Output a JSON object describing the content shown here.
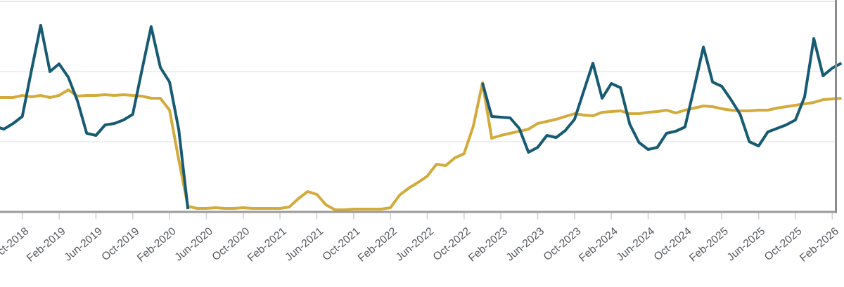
{
  "chart_data": {
    "type": "line",
    "title": "",
    "xlabel": "",
    "ylabel": "",
    "y_axis_labels_visible": false,
    "grid": "horizontal",
    "legend": "none",
    "ylim": [
      0,
      3.05
    ],
    "gridline_values": [
      1,
      2,
      3
    ],
    "x_tick_labels": [
      "Oct-2018",
      "Feb-2019",
      "Jun-2019",
      "Oct-2019",
      "Feb-2020",
      "Jun-2020",
      "Oct-2020",
      "Feb-2021",
      "Jun-2021",
      "Oct-2021",
      "Feb-2022",
      "Jun-2022",
      "Oct-2022",
      "Feb-2023",
      "Jun-2023",
      "Oct-2023",
      "Feb-2024",
      "Jun-2024",
      "Oct-2024",
      "Feb-2025",
      "Jun-2025",
      "Oct-2025",
      "Feb-2026"
    ],
    "x_months": [
      "Jul-2018",
      "Aug-2018",
      "Sep-2018",
      "Oct-2018",
      "Nov-2018",
      "Dec-2018",
      "Jan-2019",
      "Feb-2019",
      "Mar-2019",
      "Apr-2019",
      "May-2019",
      "Jun-2019",
      "Jul-2019",
      "Aug-2019",
      "Sep-2019",
      "Oct-2019",
      "Nov-2019",
      "Dec-2019",
      "Jan-2020",
      "Feb-2020",
      "Mar-2020",
      "Apr-2020",
      "May-2020",
      "Jun-2020",
      "Jul-2020",
      "Aug-2020",
      "Sep-2020",
      "Oct-2020",
      "Nov-2020",
      "Dec-2020",
      "Jan-2021",
      "Feb-2021",
      "Mar-2021",
      "Apr-2021",
      "May-2021",
      "Jun-2021",
      "Jul-2021",
      "Aug-2021",
      "Sep-2021",
      "Oct-2021",
      "Nov-2021",
      "Dec-2021",
      "Jan-2022",
      "Feb-2022",
      "Mar-2022",
      "Apr-2022",
      "May-2022",
      "Jun-2022",
      "Jul-2022",
      "Aug-2022",
      "Sep-2022",
      "Oct-2022",
      "Nov-2022",
      "Dec-2022",
      "Jan-2023",
      "Feb-2023",
      "Mar-2023",
      "Apr-2023",
      "May-2023",
      "Jun-2023",
      "Jul-2023",
      "Aug-2023",
      "Sep-2023",
      "Oct-2023",
      "Nov-2023",
      "Dec-2023",
      "Jan-2024",
      "Feb-2024",
      "Mar-2024",
      "Apr-2024",
      "May-2024",
      "Jun-2024",
      "Jul-2024",
      "Aug-2024",
      "Sep-2024",
      "Oct-2024",
      "Nov-2024",
      "Dec-2024",
      "Jan-2025",
      "Feb-2025",
      "Mar-2025",
      "Apr-2025",
      "May-2025",
      "Jun-2025",
      "Jul-2025",
      "Aug-2025",
      "Sep-2025",
      "Oct-2025",
      "Nov-2025",
      "Dec-2025",
      "Jan-2026",
      "Feb-2026",
      "Mar-2026"
    ],
    "series": [
      {
        "name": "monthly-actual-dark-teal-line",
        "color": "#175b73",
        "values": [
          1.22,
          1.18,
          1.26,
          1.36,
          2.02,
          2.66,
          2.0,
          2.11,
          1.92,
          1.58,
          1.12,
          1.09,
          1.24,
          1.26,
          1.31,
          1.39,
          2.02,
          2.64,
          2.06,
          1.85,
          1.17,
          0.04,
          null,
          null,
          null,
          null,
          null,
          null,
          null,
          null,
          null,
          null,
          null,
          null,
          null,
          null,
          null,
          null,
          null,
          null,
          null,
          null,
          null,
          null,
          null,
          null,
          null,
          null,
          null,
          null,
          null,
          null,
          null,
          1.84,
          1.36,
          1.35,
          1.34,
          1.19,
          0.85,
          0.92,
          1.09,
          1.06,
          1.16,
          1.32,
          1.72,
          2.12,
          1.62,
          1.83,
          1.77,
          1.25,
          0.99,
          0.89,
          0.92,
          1.12,
          1.15,
          1.21,
          1.77,
          2.35,
          1.85,
          1.79,
          1.6,
          1.39,
          1.0,
          0.94,
          1.14,
          1.19,
          1.24,
          1.31,
          1.64,
          2.47,
          1.94,
          2.05,
          2.12
        ]
      },
      {
        "name": "trend-gold-line",
        "color": "#d3ab3c",
        "values": [
          1.63,
          1.63,
          1.63,
          1.66,
          1.64,
          1.66,
          1.63,
          1.66,
          1.74,
          1.65,
          1.66,
          1.66,
          1.67,
          1.66,
          1.67,
          1.66,
          1.65,
          1.62,
          1.62,
          1.45,
          0.74,
          0.08,
          0.05,
          0.05,
          0.06,
          0.05,
          0.05,
          0.06,
          0.05,
          0.05,
          0.05,
          0.05,
          0.07,
          0.19,
          0.29,
          0.25,
          0.1,
          0.03,
          0.03,
          0.04,
          0.04,
          0.04,
          0.04,
          0.06,
          0.24,
          0.34,
          0.42,
          0.51,
          0.68,
          0.66,
          0.77,
          0.83,
          1.22,
          1.84,
          1.05,
          1.09,
          1.12,
          1.15,
          1.18,
          1.26,
          1.29,
          1.32,
          1.36,
          1.4,
          1.38,
          1.37,
          1.42,
          1.43,
          1.44,
          1.4,
          1.4,
          1.42,
          1.43,
          1.45,
          1.41,
          1.45,
          1.48,
          1.51,
          1.5,
          1.47,
          1.45,
          1.44,
          1.44,
          1.45,
          1.45,
          1.48,
          1.5,
          1.52,
          1.54,
          1.56,
          1.6,
          1.61,
          1.62
        ]
      }
    ],
    "colors": {
      "series_dark_teal": "#175b73",
      "series_gold": "#d3ab3c",
      "gridline": "#e9e9eb",
      "top_edge_line": "#e0e1e3",
      "axis_line": "#9a9a9a",
      "right_border": "#8c8c8c",
      "tick_mark": "#ced2d6",
      "tick_label_text": "#55585d",
      "background": "#ffffff"
    }
  }
}
